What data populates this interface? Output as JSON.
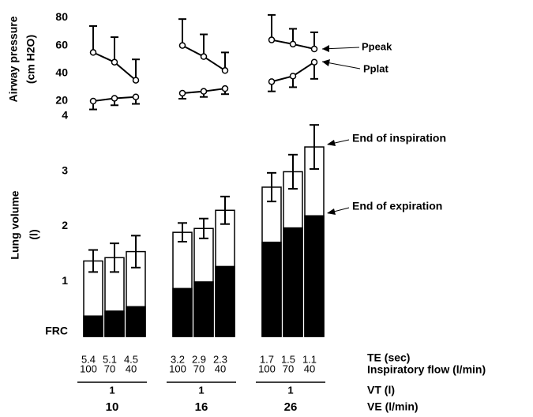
{
  "chart_data": [
    {
      "type": "line",
      "ylabel": [
        "Airway pressure",
        "(cm H2O)"
      ],
      "ylim": [
        15,
        85
      ],
      "yticks": [
        20,
        40,
        60,
        80
      ],
      "grid": false,
      "series": [
        {
          "name": "Ppeak",
          "color": "#000000",
          "error_side": "up",
          "values": [
            55,
            48,
            35,
            60,
            52,
            42,
            64,
            61,
            57.5
          ],
          "errors": [
            19,
            18,
            15,
            19,
            16,
            13,
            18,
            11,
            12
          ]
        },
        {
          "name": "Pplat",
          "color": "#000000",
          "error_side": "down",
          "values": [
            20,
            22,
            23,
            25.7,
            27,
            29,
            34,
            38,
            48
          ],
          "errors": [
            6,
            5,
            5,
            4,
            4,
            4,
            7,
            8,
            12
          ]
        }
      ]
    },
    {
      "type": "bar",
      "ylabel": [
        "Lung volume",
        "(l)"
      ],
      "ylim": [
        0,
        4
      ],
      "yticks": [
        {
          "value": 0,
          "label": "FRC"
        },
        1,
        2,
        3,
        4
      ],
      "grid": false,
      "series": [
        {
          "name": "End of inspiration",
          "color": "#ffffff",
          "values": [
            1.37,
            1.43,
            1.54,
            1.89,
            1.96,
            2.29,
            2.71,
            2.99,
            3.44
          ],
          "errors": [
            0.2,
            0.26,
            0.29,
            0.17,
            0.18,
            0.25,
            0.26,
            0.31,
            0.4
          ]
        },
        {
          "name": "End of expiration",
          "color": "#000000",
          "values": [
            0.37,
            0.46,
            0.54,
            0.87,
            0.99,
            1.27,
            1.71,
            1.97,
            2.19
          ]
        }
      ]
    }
  ],
  "table": {
    "rows": [
      {
        "label": "TE (sec)",
        "values": [
          5.4,
          5.1,
          4.5,
          3.2,
          2.9,
          2.3,
          1.7,
          1.5,
          1.1
        ]
      },
      {
        "label": "Inspiratory flow (l/min)",
        "values": [
          100,
          70,
          40,
          100,
          70,
          40,
          100,
          70,
          40
        ]
      }
    ],
    "group_rows": [
      {
        "label": "VT (l)",
        "values": [
          1,
          1,
          1
        ]
      },
      {
        "label": "VE (l/min)",
        "values": [
          10,
          16,
          26
        ]
      }
    ]
  }
}
